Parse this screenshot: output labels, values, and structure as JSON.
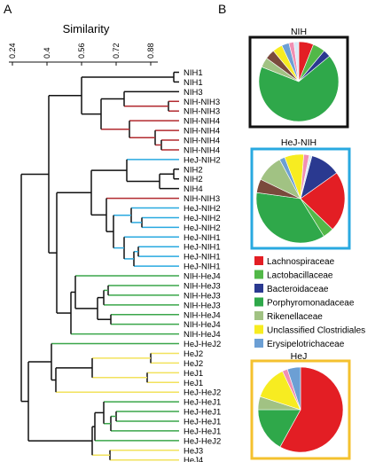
{
  "panel_a": {
    "letter": "A",
    "axis_title": "Similarity",
    "ticks": [
      "0.24",
      "0.4",
      "0.56",
      "0.72",
      "0.88"
    ],
    "leaves": [
      "NIH1",
      "NIH1",
      "NIH3",
      "NIH-NIH3",
      "NIH-NIH3",
      "NIH-NIH4",
      "NIH-NIH4",
      "NIH-NIH4",
      "NIH-NIH4",
      "HeJ-NIH2",
      "NIH2",
      "NIH2",
      "NIH4",
      "NIH-NIH3",
      "HeJ-NIH2",
      "HeJ-NIH2",
      "HeJ-NIH2",
      "HeJ-NIH1",
      "HeJ-NIH1",
      "HeJ-NIH1",
      "HeJ-NIH1",
      "NIH-HeJ4",
      "NIH-HeJ3",
      "NIH-HeJ3",
      "NIH-HeJ3",
      "NIH-HeJ4",
      "NIH-HeJ4",
      "NIH-HeJ4",
      "HeJ-HeJ2",
      "HeJ2",
      "HeJ2",
      "HeJ1",
      "HeJ1",
      "HeJ-HeJ2",
      "HeJ-HeJ1",
      "HeJ-HeJ1",
      "HeJ-HeJ1",
      "HeJ-HeJ1",
      "HeJ-HeJ2",
      "HeJ3",
      "HeJ4"
    ]
  },
  "panel_b": {
    "letter": "B",
    "pies": [
      {
        "title": "NIH",
        "border": "#111111",
        "slices": [
          {
            "family": "Lachnospiraceae",
            "value": 6
          },
          {
            "family": "Lactobacillaceae",
            "value": 5
          },
          {
            "family": "Bacteroidaceae",
            "value": 3
          },
          {
            "family": "Porphyromonadaceae",
            "value": 67
          },
          {
            "family": "Rikenellaceae",
            "value": 4
          },
          {
            "family": "Brown",
            "value": 4
          },
          {
            "family": "Unclassified Clostridiales",
            "value": 4
          },
          {
            "family": "Erysipelotrichaceae",
            "value": 3
          },
          {
            "family": "Pink",
            "value": 2
          },
          {
            "family": "Other",
            "value": 2
          }
        ]
      },
      {
        "title": "HeJ-NIH",
        "border": "#29a9e0",
        "slices": [
          {
            "family": "Bacteroidaceae",
            "value": 11
          },
          {
            "family": "Lachnospiraceae",
            "value": 22
          },
          {
            "family": "Lactobacillaceae",
            "value": 4
          },
          {
            "family": "Porphyromonadaceae",
            "value": 36
          },
          {
            "family": "Brown",
            "value": 5
          },
          {
            "family": "Rikenellaceae",
            "value": 10
          },
          {
            "family": "Erysipelotrichaceae",
            "value": 2
          },
          {
            "family": "Unclassified Clostridiales",
            "value": 7
          },
          {
            "family": "Pink",
            "value": 2
          },
          {
            "family": "Other",
            "value": 1
          }
        ]
      },
      {
        "title": "HeJ",
        "border": "#f4c12e",
        "slices": [
          {
            "family": "Lachnospiraceae",
            "value": 58
          },
          {
            "family": "Porphyromonadaceae",
            "value": 17
          },
          {
            "family": "Rikenellaceae",
            "value": 5
          },
          {
            "family": "Unclassified Clostridiales",
            "value": 13
          },
          {
            "family": "Pink",
            "value": 2
          },
          {
            "family": "Erysipelotrichaceae",
            "value": 5
          }
        ]
      }
    ],
    "legend": [
      {
        "label": "Lachnospiraceae",
        "color": "#e31e24"
      },
      {
        "label": "Lactobacillaceae",
        "color": "#52b848"
      },
      {
        "label": "Bacteroidaceae",
        "color": "#2a3990"
      },
      {
        "label": "Porphyromonadaceae",
        "color": "#2fa84a"
      },
      {
        "label": "Rikenellaceae",
        "color": "#a1c283"
      },
      {
        "label": "Unclassified Clostridiales",
        "color": "#f7ec21"
      },
      {
        "label": "Erysipelotrichaceae",
        "color": "#6c9fd4"
      }
    ],
    "extra_colors": {
      "Brown": "#7a4a3c",
      "Pink": "#f08fb3",
      "Other": "#d9eaf7"
    }
  }
}
